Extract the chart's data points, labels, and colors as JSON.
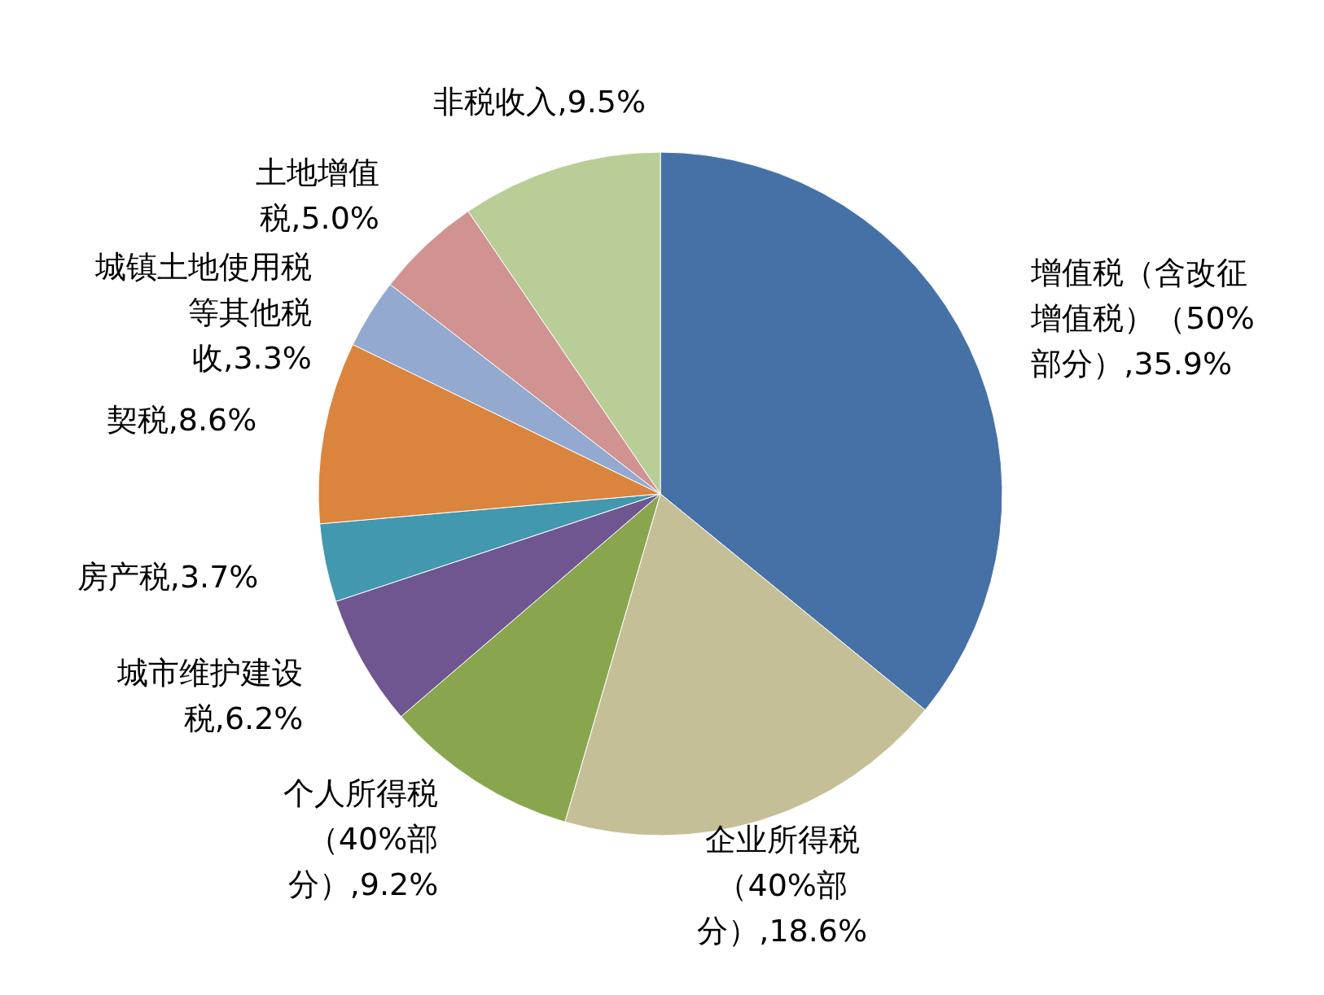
{
  "chart_data": {
    "type": "pie",
    "categories": [
      "增值税（含改征增值税）（50%部分）",
      "企业所得税（40%部分）",
      "个人所得税（40%部分）",
      "城市维护建设税",
      "房产税",
      "契税",
      "城镇土地使用税等其他税收",
      "土地增值税",
      "非税收入"
    ],
    "values": [
      35.9,
      18.6,
      9.2,
      6.2,
      3.7,
      8.6,
      3.3,
      5.0,
      9.5
    ],
    "value_labels": [
      "35.9%",
      "18.6%",
      "9.2%",
      "6.2%",
      "3.7%",
      "8.6%",
      "3.3%",
      "5.0%",
      "9.5%"
    ],
    "colors": [
      "#4571a7",
      "#c5bf97",
      "#89a64e",
      "#6f5690",
      "#4198af",
      "#db843d",
      "#93a9cf",
      "#d19392",
      "#b9cd96"
    ]
  }
}
